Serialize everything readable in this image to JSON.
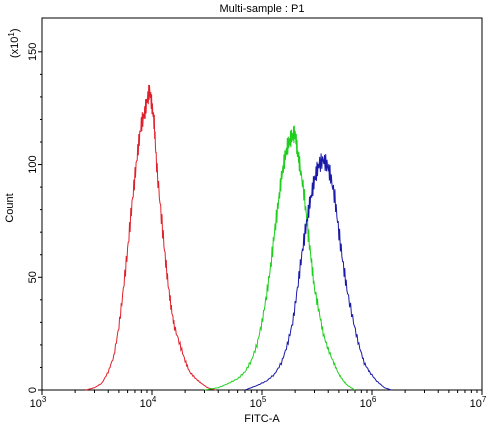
{
  "chart_data": {
    "type": "line",
    "title": "Multi-sample : P1",
    "xlabel": "FITC-A",
    "ylabel": "Count",
    "y_multiplier_label": "(x10",
    "y_multiplier_exp": "1",
    "x_scale": "log",
    "xlim": [
      1000,
      10000000
    ],
    "ylim": [
      0,
      165
    ],
    "x_ticks": [
      {
        "value": 1000,
        "base": "10",
        "exp": "3"
      },
      {
        "value": 10000,
        "base": "10",
        "exp": "4"
      },
      {
        "value": 100000,
        "base": "10",
        "exp": "5"
      },
      {
        "value": 1000000,
        "base": "10",
        "exp": "6"
      },
      {
        "value": 10000000,
        "base": "10",
        "exp": "7"
      }
    ],
    "y_ticks": [
      {
        "value": 0,
        "label": "0"
      },
      {
        "value": 50,
        "label": "50"
      },
      {
        "value": 100,
        "label": "100"
      },
      {
        "value": 150,
        "label": "150"
      }
    ],
    "grid": false,
    "legend": "none",
    "series": [
      {
        "color": "#e0202a",
        "x": [
          2500,
          3000,
          3500,
          4000,
          4500,
          5000,
          5500,
          6000,
          6500,
          7000,
          7500,
          8000,
          8500,
          9000,
          9500,
          10000,
          10500,
          11000,
          12000,
          13000,
          14000,
          15000,
          16000,
          18000,
          20000,
          22000,
          25000,
          28000,
          32000,
          38000
        ],
        "y": [
          0,
          1,
          3,
          8,
          15,
          28,
          45,
          62,
          80,
          95,
          108,
          118,
          122,
          128,
          133,
          126,
          118,
          100,
          80,
          62,
          47,
          36,
          28,
          20,
          13,
          8,
          5,
          3,
          1,
          0
        ]
      },
      {
        "color": "#1ecf1e",
        "x": [
          30000,
          40000,
          50000,
          60000,
          70000,
          80000,
          90000,
          100000,
          110000,
          120000,
          130000,
          140000,
          150000,
          160000,
          170000,
          180000,
          190000,
          200000,
          210000,
          220000,
          240000,
          260000,
          280000,
          300000,
          330000,
          360000,
          400000,
          450000,
          500000,
          550000,
          600000,
          700000
        ],
        "y": [
          0,
          1,
          3,
          5,
          8,
          13,
          20,
          30,
          42,
          55,
          70,
          82,
          94,
          102,
          108,
          111,
          113,
          114,
          106,
          100,
          88,
          72,
          58,
          45,
          35,
          25,
          18,
          12,
          7,
          4,
          2,
          0
        ]
      },
      {
        "color": "#1a1aa8",
        "x": [
          70000,
          90000,
          110000,
          130000,
          150000,
          170000,
          190000,
          210000,
          230000,
          250000,
          270000,
          290000,
          310000,
          330000,
          360000,
          390000,
          420000,
          460000,
          500000,
          550000,
          600000,
          680000,
          760000,
          850000,
          950000,
          1100000,
          1300000,
          1500000
        ],
        "y": [
          0,
          2,
          4,
          7,
          12,
          20,
          30,
          45,
          60,
          72,
          82,
          90,
          96,
          100,
          102,
          100,
          95,
          85,
          70,
          55,
          43,
          30,
          20,
          12,
          8,
          4,
          1,
          0
        ]
      }
    ]
  }
}
